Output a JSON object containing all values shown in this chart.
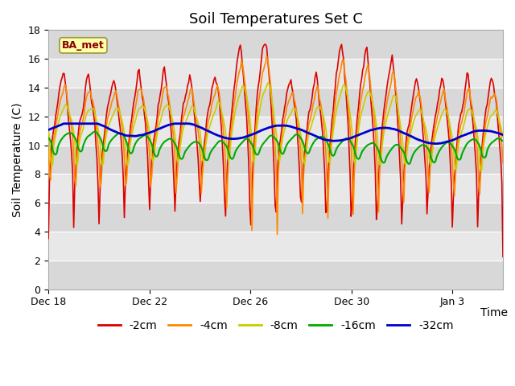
{
  "title": "Soil Temperatures Set C",
  "xlabel": "Time",
  "ylabel": "Soil Temperature (C)",
  "ylim": [
    0,
    18
  ],
  "yticks": [
    0,
    2,
    4,
    6,
    8,
    10,
    12,
    14,
    16,
    18
  ],
  "xtick_labels": [
    "Dec 18",
    "Dec 22",
    "Dec 26",
    "Dec 30",
    "Jan 3"
  ],
  "xtick_positions": [
    0,
    4,
    8,
    12,
    16
  ],
  "legend_labels": [
    "-2cm",
    "-4cm",
    "-8cm",
    "-16cm",
    "-32cm"
  ],
  "legend_colors": [
    "#dd0000",
    "#ff8800",
    "#cccc00",
    "#00aa00",
    "#0000cc"
  ],
  "line_widths": [
    1.2,
    1.2,
    1.2,
    1.5,
    2.0
  ],
  "annotation_text": "BA_met",
  "annotation_bg": "#ffffaa",
  "annotation_border": "#999944",
  "plot_bg_dark": "#d8d8d8",
  "plot_bg_light": "#e8e8e8",
  "title_fontsize": 13,
  "label_fontsize": 10,
  "tick_fontsize": 9
}
